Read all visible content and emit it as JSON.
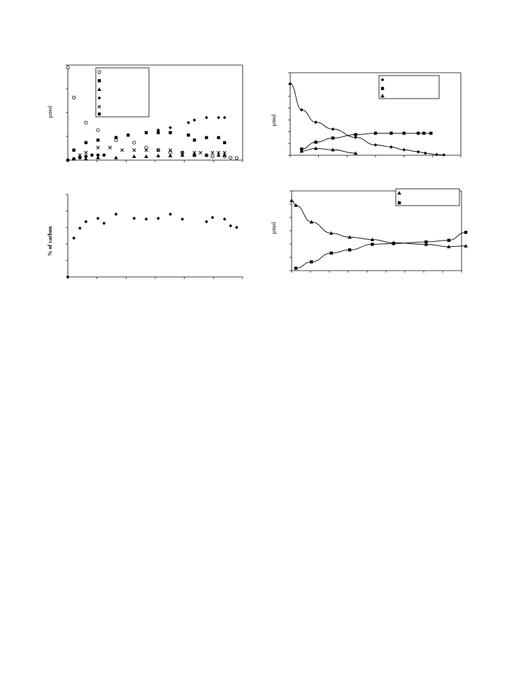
{
  "chart_data": [
    {
      "id": "top_left",
      "type": "scatter",
      "ylabel": "µmol",
      "xlim": [
        0,
        29
      ],
      "ylim": [
        0,
        38
      ],
      "legend": "top-left (inside plot)",
      "series": [
        {
          "marker": "circle-open",
          "x": [
            0,
            1,
            3,
            5,
            8,
            11,
            13,
            15,
            17,
            19,
            21,
            23,
            24,
            26,
            27,
            28
          ],
          "y": [
            37,
            25,
            15,
            12,
            8,
            7,
            5,
            4,
            3,
            3,
            2,
            2,
            1.5,
            1.5,
            1,
            0.8
          ]
        },
        {
          "marker": "square",
          "x": [
            1,
            3,
            5,
            8,
            10,
            13,
            15,
            17,
            20,
            21,
            23,
            25,
            26
          ],
          "y": [
            4,
            7,
            8,
            9,
            10,
            11,
            11,
            11,
            10,
            8,
            9,
            9,
            7
          ]
        },
        {
          "marker": "triangle",
          "x": [
            1,
            3,
            5,
            8,
            11,
            13,
            15,
            17,
            19,
            21,
            23,
            25,
            26
          ],
          "y": [
            0.5,
            0.5,
            1,
            1,
            1.5,
            1.5,
            1.8,
            1.8,
            2,
            2,
            2,
            2,
            2
          ]
        },
        {
          "marker": "diamond",
          "x": [
            8,
            10,
            15,
            17,
            20,
            21,
            23,
            25,
            26
          ],
          "y": [
            9,
            10,
            12,
            13,
            15,
            16,
            17,
            17,
            17
          ]
        },
        {
          "marker": "cross",
          "x": [
            2,
            3,
            5,
            7,
            9,
            11,
            13,
            15,
            17,
            19,
            21,
            22,
            24,
            25,
            26
          ],
          "y": [
            2,
            3,
            5,
            5,
            4,
            4,
            4,
            4,
            4,
            3,
            3,
            3,
            3,
            3,
            3
          ]
        },
        {
          "marker": "dot",
          "x": [
            0,
            1,
            2,
            3,
            4,
            5,
            6
          ],
          "y": [
            0,
            0.5,
            1,
            1.5,
            2,
            2,
            2
          ]
        }
      ]
    },
    {
      "id": "top_right",
      "type": "scatter",
      "ylabel": "µmol",
      "xlim": [
        0,
        12
      ],
      "ylim": [
        0,
        12
      ],
      "legend": "top-right (inside plot)",
      "series": [
        {
          "marker": "diamond",
          "x": [
            0,
            0.8,
            1.8,
            3,
            4.6,
            6,
            7.1,
            8,
            9,
            9.5,
            10.3,
            10.8
          ],
          "y": [
            10.4,
            6.6,
            4.8,
            3.8,
            2.6,
            1.5,
            1.2,
            0.8,
            0.5,
            0.3,
            0.1,
            0.05
          ]
        },
        {
          "marker": "square",
          "x": [
            0.8,
            1.8,
            3,
            4.6,
            6,
            7.1,
            8,
            9,
            9.4,
            9.9
          ],
          "y": [
            0.9,
            1.9,
            2.5,
            3.0,
            3.2,
            3.2,
            3.2,
            3.2,
            3.2,
            3.2
          ]
        },
        {
          "marker": "triangle",
          "x": [
            0.8,
            1.8,
            3,
            4.6
          ],
          "y": [
            0.6,
            1.0,
            0.8,
            0.3
          ]
        }
      ]
    },
    {
      "id": "bottom_left",
      "type": "scatter",
      "ylabel": "% of carbon",
      "xlim": [
        0,
        29
      ],
      "ylim": [
        0,
        100
      ],
      "series": [
        {
          "marker": "diamond",
          "x": [
            0,
            1,
            2,
            3,
            5,
            6,
            8,
            11,
            13,
            15,
            17,
            19,
            23,
            24,
            26,
            27,
            28
          ],
          "y": [
            0,
            47,
            59,
            67,
            71,
            65,
            76,
            71,
            70,
            71,
            76,
            70,
            67,
            72,
            70,
            62,
            60
          ]
        }
      ]
    },
    {
      "id": "bottom_right",
      "type": "scatter",
      "ylabel": "µmol",
      "xlim": [
        0,
        12
      ],
      "ylim": [
        0,
        10
      ],
      "legend": "top-right (inside plot)",
      "series": [
        {
          "marker": "triangle",
          "x": [
            0,
            0.3,
            1.4,
            2.8,
            4.1,
            5.7,
            7.2,
            9.5,
            11.1,
            12.3
          ],
          "y": [
            8.8,
            8.2,
            6.1,
            4.7,
            4.2,
            3.9,
            3.5,
            3.3,
            3.0,
            3.1
          ]
        },
        {
          "marker": "square",
          "x": [
            0.3,
            1.4,
            2.8,
            4.1,
            5.7,
            7.2,
            9.5,
            11.1,
            12.3
          ],
          "y": [
            0.3,
            1.1,
            2.2,
            2.6,
            3.3,
            3.4,
            3.6,
            3.8,
            4.8
          ]
        }
      ]
    }
  ]
}
